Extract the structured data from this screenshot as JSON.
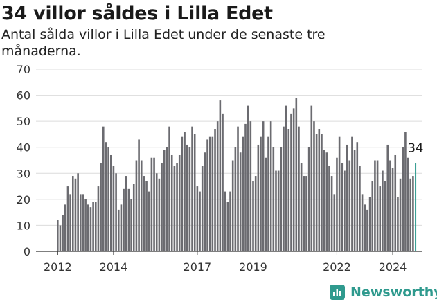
{
  "chart_data": {
    "type": "bar",
    "title": "34 villor såldes i Lilla Edet",
    "subtitle": "Antal sålda villor i Lilla Edet under de senaste tre månaderna.",
    "xlabel": "",
    "ylabel": "",
    "ylim": [
      0,
      70
    ],
    "yticks": [
      "0",
      "10",
      "20",
      "30",
      "40",
      "50",
      "60",
      "70"
    ],
    "xticks": [
      {
        "label": "2012",
        "index": 0
      },
      {
        "label": "2014",
        "index": 22
      },
      {
        "label": "2017",
        "index": 55
      },
      {
        "label": "2019",
        "index": 77
      },
      {
        "label": "2022",
        "index": 110
      },
      {
        "label": "2024",
        "index": 132
      }
    ],
    "grid": true,
    "bar_color": "#6b6b70",
    "highlight_color": "#2f9a8e",
    "highlight_label": "34",
    "values": [
      12,
      10,
      14,
      18,
      25,
      22,
      29,
      28,
      30,
      22,
      22,
      20,
      18,
      17,
      19,
      19,
      25,
      34,
      48,
      42,
      40,
      37,
      33,
      30,
      16,
      18,
      24,
      29,
      24,
      20,
      26,
      35,
      43,
      35,
      29,
      27,
      23,
      36,
      36,
      30,
      28,
      34,
      39,
      40,
      48,
      37,
      33,
      34,
      37,
      44,
      46,
      41,
      40,
      48,
      45,
      25,
      23,
      33,
      38,
      43,
      44,
      44,
      47,
      50,
      58,
      53,
      23,
      19,
      23,
      35,
      40,
      48,
      38,
      44,
      49,
      56,
      50,
      27,
      29,
      41,
      44,
      50,
      36,
      44,
      50,
      40,
      31,
      31,
      40,
      48,
      56,
      47,
      53,
      55,
      59,
      48,
      34,
      29,
      29,
      40,
      56,
      50,
      45,
      47,
      45,
      39,
      38,
      33,
      29,
      22,
      36,
      44,
      34,
      31,
      41,
      35,
      44,
      39,
      42,
      33,
      22,
      18,
      16,
      21,
      27,
      35,
      35,
      25,
      31,
      27,
      41,
      35,
      32,
      37,
      21,
      28,
      40,
      46,
      36,
      28,
      29,
      34
    ]
  },
  "brand": {
    "name": "Newsworthy",
    "color": "#2f9a8e"
  }
}
